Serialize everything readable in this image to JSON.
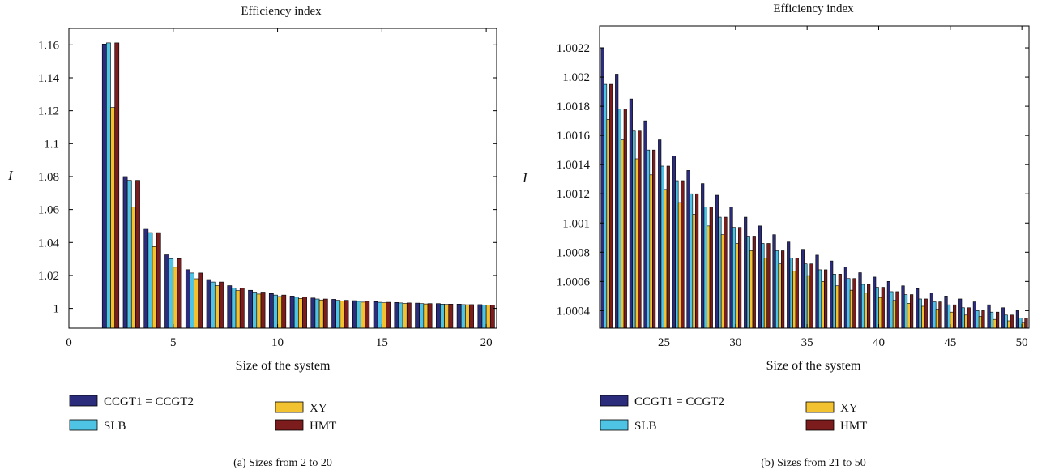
{
  "chart_data": [
    {
      "type": "bar",
      "title": "Efficiency index",
      "xlabel": "Size of the system",
      "ylabel": "I",
      "caption": "(a)  Sizes from 2 to 20",
      "xlim": [
        0,
        20.5
      ],
      "ylim": [
        0.988,
        1.17
      ],
      "xticks": [
        "0",
        "5",
        "10",
        "15",
        "20"
      ],
      "yticks": [
        "1",
        "1.02",
        "1.04",
        "1.06",
        "1.08",
        "1.1",
        "1.12",
        "1.14",
        "1.16"
      ],
      "categories": [
        2,
        3,
        4,
        5,
        6,
        7,
        8,
        9,
        10,
        11,
        12,
        13,
        14,
        15,
        16,
        17,
        18,
        19,
        20
      ],
      "series": [
        {
          "name": "CCGT1 = CCGT2",
          "color": "#2b2d7c",
          "values": [
            1.1605,
            1.08,
            1.0485,
            1.0325,
            1.0235,
            1.0175,
            1.0138,
            1.011,
            1.009,
            1.0075,
            1.0063,
            1.0055,
            1.0047,
            1.0041,
            1.0036,
            1.0032,
            1.0029,
            1.0026,
            1.0023
          ]
        },
        {
          "name": "SLB",
          "color": "#4fc3e3",
          "values": [
            1.1612,
            1.0777,
            1.046,
            1.0302,
            1.0215,
            1.016,
            1.0124,
            1.0099,
            1.0081,
            1.0068,
            1.0057,
            1.0049,
            1.0043,
            1.0037,
            1.0033,
            1.0029,
            1.0026,
            1.0023,
            1.0021
          ]
        },
        {
          "name": "XY",
          "color": "#f2c230",
          "values": [
            1.122,
            1.0615,
            1.0375,
            1.025,
            1.018,
            1.0138,
            1.0108,
            1.0087,
            1.0072,
            1.006,
            1.0051,
            1.0044,
            1.0038,
            1.0034,
            1.003,
            1.0027,
            1.0024,
            1.0022,
            1.002
          ]
        },
        {
          "name": "HMT",
          "color": "#7d1c1c",
          "values": [
            1.1612,
            1.0777,
            1.046,
            1.0302,
            1.0215,
            1.016,
            1.0124,
            1.0099,
            1.0081,
            1.0068,
            1.0057,
            1.0049,
            1.0043,
            1.0037,
            1.0033,
            1.0029,
            1.0026,
            1.0023,
            1.0021
          ]
        }
      ]
    },
    {
      "type": "bar",
      "title": "Efficiency index",
      "xlabel": "Size of the system",
      "ylabel": "I",
      "caption": "(b)  Sizes from 21 to 50",
      "xlim": [
        20.5,
        50.5
      ],
      "ylim": [
        1.00028,
        1.00235
      ],
      "xticks": [
        "25",
        "30",
        "35",
        "40",
        "45",
        "50"
      ],
      "yticks": [
        "1.0004",
        "1.0006",
        "1.0008",
        "1.001",
        "1.0012",
        "1.0014",
        "1.0016",
        "1.0018",
        "1.002",
        "1.0022"
      ],
      "categories": [
        21,
        22,
        23,
        24,
        25,
        26,
        27,
        28,
        29,
        30,
        31,
        32,
        33,
        34,
        35,
        36,
        37,
        38,
        39,
        40,
        41,
        42,
        43,
        44,
        45,
        46,
        47,
        48,
        49,
        50
      ],
      "series": [
        {
          "name": "CCGT1 = CCGT2",
          "color": "#2b2d7c",
          "values": [
            1.0022,
            1.00202,
            1.00185,
            1.0017,
            1.00157,
            1.00146,
            1.00136,
            1.00127,
            1.00119,
            1.00111,
            1.00104,
            1.00098,
            1.00092,
            1.00087,
            1.00082,
            1.00078,
            1.00074,
            1.0007,
            1.00066,
            1.00063,
            1.0006,
            1.00057,
            1.00055,
            1.00052,
            1.0005,
            1.00048,
            1.00046,
            1.00044,
            1.00042,
            1.0004
          ]
        },
        {
          "name": "SLB",
          "color": "#4fc3e3",
          "values": [
            1.00195,
            1.00178,
            1.00163,
            1.0015,
            1.00139,
            1.00129,
            1.0012,
            1.00111,
            1.00104,
            1.00097,
            1.00091,
            1.00086,
            1.00081,
            1.00076,
            1.00072,
            1.00068,
            1.00065,
            1.00062,
            1.00058,
            1.00056,
            1.00053,
            1.00051,
            1.00048,
            1.00046,
            1.00044,
            1.00042,
            1.0004,
            1.00039,
            1.00037,
            1.00035
          ]
        },
        {
          "name": "XY",
          "color": "#f2c230",
          "values": [
            1.00171,
            1.00157,
            1.00144,
            1.00133,
            1.00123,
            1.00114,
            1.00106,
            1.00098,
            1.00092,
            1.00086,
            1.00081,
            1.00076,
            1.00072,
            1.00067,
            1.00064,
            1.0006,
            1.00057,
            1.00054,
            1.00052,
            1.00049,
            1.00047,
            1.00045,
            1.00043,
            1.00041,
            1.00039,
            1.00037,
            1.00036,
            1.00034,
            1.00033,
            1.00032
          ]
        },
        {
          "name": "HMT",
          "color": "#7d1c1c",
          "values": [
            1.00195,
            1.00178,
            1.00163,
            1.0015,
            1.00139,
            1.00129,
            1.0012,
            1.00111,
            1.00104,
            1.00097,
            1.00091,
            1.00086,
            1.00081,
            1.00076,
            1.00072,
            1.00068,
            1.00065,
            1.00062,
            1.00058,
            1.00056,
            1.00053,
            1.00051,
            1.00048,
            1.00046,
            1.00044,
            1.00042,
            1.0004,
            1.00039,
            1.00037,
            1.00035
          ]
        }
      ]
    }
  ]
}
